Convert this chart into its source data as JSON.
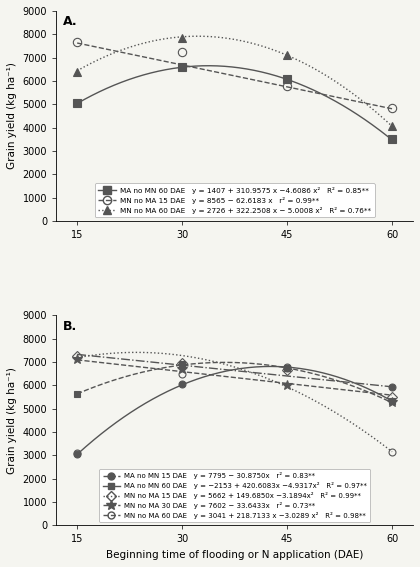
{
  "panel_A": {
    "label": "A.",
    "series": [
      {
        "name": "MA no MN 60 DAE",
        "eq": "y = 1407 + 310.9575 x −4.6086 x²",
        "r2": "R² = 0.85**",
        "coeffs": [
          1407,
          310.9575,
          -4.6086
        ],
        "marker": "s",
        "fillstyle": "full",
        "linestyle": "-",
        "color": "#555555",
        "markersize": 6,
        "data_x": [
          15,
          30,
          45,
          60
        ],
        "data_y": [
          5050,
          6600,
          6100,
          3500
        ]
      },
      {
        "name": "MN no MA 15 DAE",
        "eq": "y = 8565 − 62.6183 x",
        "r2": "r² = 0.99**",
        "coeffs": [
          8565,
          -62.6183,
          0
        ],
        "marker": "o",
        "fillstyle": "none",
        "linestyle": "--",
        "color": "#555555",
        "markersize": 6,
        "data_x": [
          15,
          30,
          45,
          60
        ],
        "data_y": [
          7650,
          7250,
          5800,
          4850
        ]
      },
      {
        "name": "MN no MA 60 DAE",
        "eq": "y = 2726 + 322.2508 x − 5.0008 x²",
        "r2": "R² = 0.76**",
        "coeffs": [
          2726,
          322.2508,
          -5.0008
        ],
        "marker": "^",
        "fillstyle": "full",
        "linestyle": ":",
        "color": "#555555",
        "markersize": 6,
        "data_x": [
          15,
          30,
          45,
          60
        ],
        "data_y": [
          6400,
          7850,
          7100,
          4050
        ]
      }
    ],
    "ylim": [
      0,
      9000
    ],
    "yticks": [
      0,
      1000,
      2000,
      3000,
      4000,
      5000,
      6000,
      7000,
      8000,
      9000
    ],
    "xticks": [
      15,
      30,
      45,
      60
    ],
    "xlim": [
      12,
      63
    ]
  },
  "panel_B": {
    "label": "B.",
    "series": [
      {
        "name": "MA no MN 15 DAE",
        "eq": "y = 7795 − 30.8750x",
        "r2": "r² = 0.83**",
        "coeffs": [
          7795,
          -30.875,
          0
        ],
        "marker": "o",
        "fillstyle": "full",
        "linestyle": "-.",
        "color": "#555555",
        "markersize": 5,
        "data_x": [
          15,
          30,
          45,
          60
        ],
        "data_y": [
          3050,
          6050,
          6750,
          5950
        ]
      },
      {
        "name": "MA no MN 60 DAE",
        "eq": "y = −2153 + 420.6083x −4.9317x²",
        "r2": "R² = 0.97**",
        "coeffs": [
          -2153,
          420.6083,
          -4.9317
        ],
        "marker": "s",
        "fillstyle": "full",
        "linestyle": "-",
        "color": "#555555",
        "markersize": 5,
        "data_x": [
          15,
          30,
          45,
          60
        ],
        "data_y": [
          5650,
          6900,
          6750,
          5350
        ]
      },
      {
        "name": "MN no MA 15 DAE",
        "eq": "y = 5662 + 149.6850x −3.1894x²",
        "r2": "R² = 0.99**",
        "coeffs": [
          5662,
          149.685,
          -3.1894
        ],
        "marker": "D",
        "fillstyle": "none",
        "linestyle": ":",
        "color": "#555555",
        "markersize": 5,
        "data_x": [
          15,
          30,
          45,
          60
        ],
        "data_y": [
          7250,
          6950,
          6650,
          5500
        ]
      },
      {
        "name": "MN no MA 30 DAE",
        "eq": "y = 7602 − 33.6433x",
        "r2": "r² = 0.73**",
        "coeffs": [
          7602,
          -33.6433,
          0
        ],
        "marker": "*",
        "fillstyle": "full",
        "linestyle": "--",
        "color": "#555555",
        "markersize": 7,
        "data_x": [
          15,
          30,
          45,
          60
        ],
        "data_y": [
          7150,
          6700,
          6000,
          5300
        ]
      },
      {
        "name": "MN no MA 60 DAE",
        "eq": "y = 3041 + 218.7133 x −3.0289 x²",
        "r2": "R² = 0.98**",
        "coeffs": [
          3041,
          218.7133,
          -3.0289
        ],
        "marker": "o",
        "fillstyle": "none",
        "linestyle": "--",
        "color": "#555555",
        "markersize": 5,
        "data_x": [
          15,
          30,
          45,
          60
        ],
        "data_y": [
          3100,
          6500,
          6800,
          3150
        ]
      }
    ],
    "ylim": [
      0,
      9000
    ],
    "yticks": [
      0,
      1000,
      2000,
      3000,
      4000,
      5000,
      6000,
      7000,
      8000,
      9000
    ],
    "xticks": [
      15,
      30,
      45,
      60
    ],
    "xlim": [
      12,
      63
    ]
  },
  "xlabel": "Beginning time of flooding or N application (DAE)",
  "ylabel": "Grain yield (kg ha⁻¹)",
  "background": "#f5f5f0",
  "plot_bg": "#f5f5f0"
}
